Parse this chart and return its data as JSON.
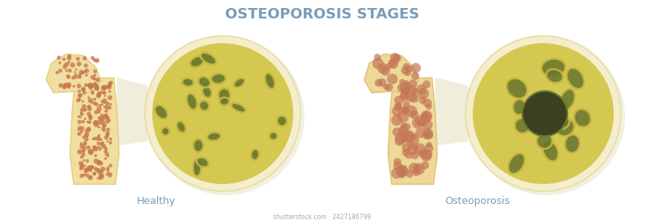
{
  "title": "OSTEOPOROSIS STAGES",
  "title_color": "#7a9cb8",
  "title_fontsize": 13,
  "label_healthy": "Healthy",
  "label_osteo": "Osteoporosis",
  "label_color": "#7a9cb8",
  "label_fontsize": 9,
  "bg_color": "#ffffff",
  "bone_outer_color": "#f0dfa0",
  "bone_outer_edge": "#e8cc80",
  "healthy_dot_color": "#c87850",
  "osteo_dot_color": "#c47858",
  "circle_bg": "#f5eecc",
  "circle_edge": "#e8e0b0",
  "trabecular_yellow": "#c8b840",
  "trabecular_dark": "#6a7830",
  "trabecular_bg": "#d4c850",
  "osteo_center_dark": "#3a4020",
  "shadow_color": "#e8e4c8",
  "osteo_bone_color": "#edd898",
  "osteo_bone_edge": "#e0c070"
}
